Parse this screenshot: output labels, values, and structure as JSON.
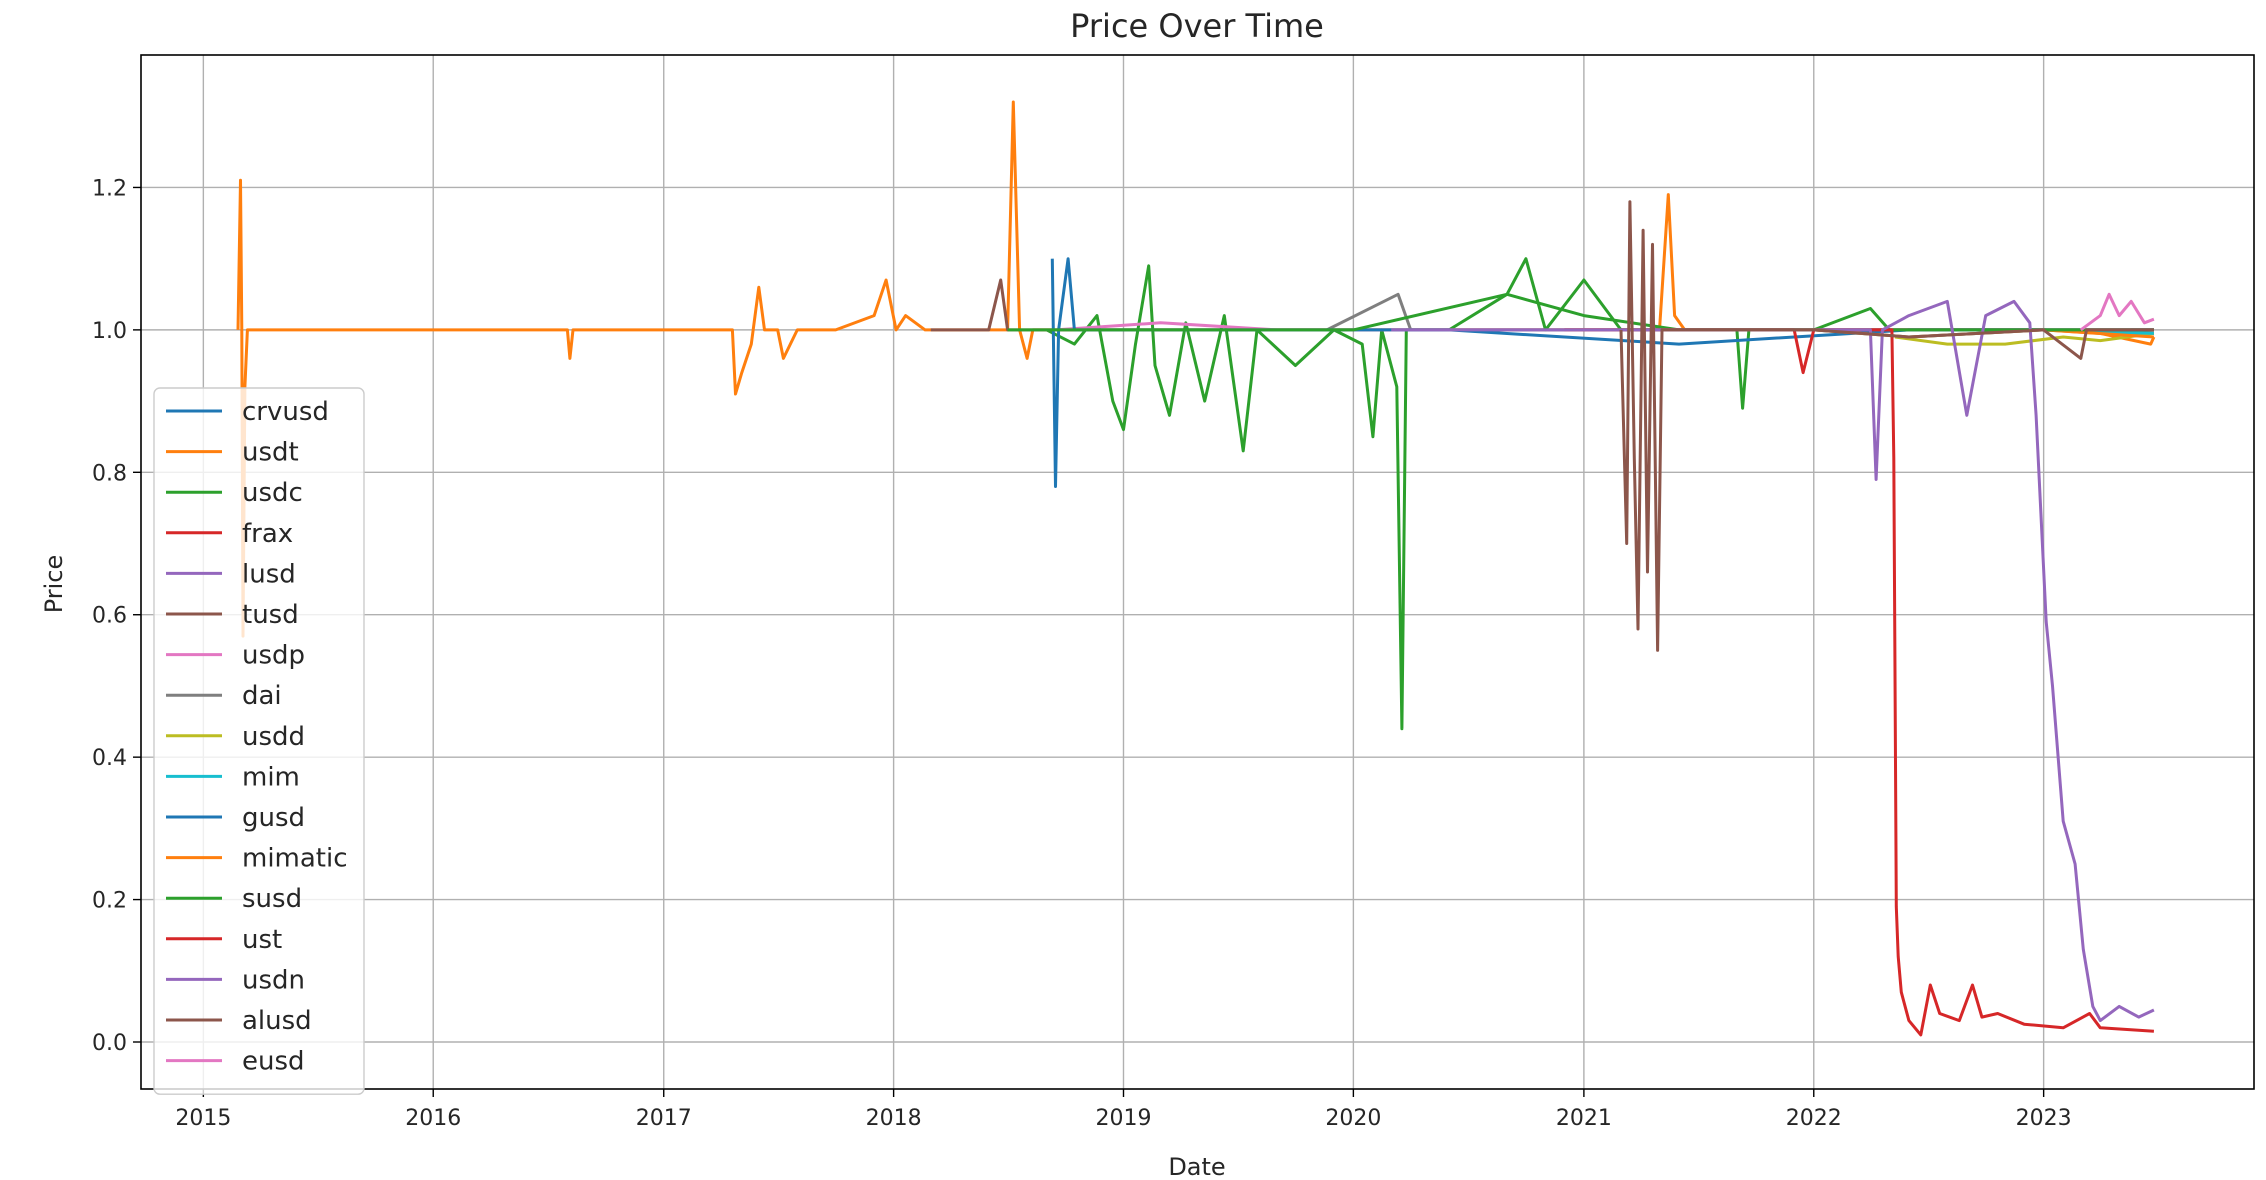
{
  "chart_data": {
    "type": "line",
    "title": "Price Over Time",
    "xlabel": "Date",
    "ylabel": "Price",
    "x_ticks": [
      "2015",
      "2016",
      "2017",
      "2018",
      "2019",
      "2020",
      "2021",
      "2022",
      "2023"
    ],
    "y_ticks": [
      "0.0",
      "0.2",
      "0.4",
      "0.6",
      "0.8",
      "1.0",
      "1.2"
    ],
    "xlim": [
      "2014-09-24",
      "2023-12-01"
    ],
    "ylim": [
      -0.066,
      1.386
    ],
    "grid": true,
    "legend_position": "lower-left",
    "series": [
      {
        "name": "crvusd",
        "color": "#1f77b4",
        "points": [
          [
            "2023-05-20",
            1.0
          ],
          [
            "2023-06-01",
            1.0
          ],
          [
            "2023-06-15",
            1.0
          ],
          [
            "2023-06-25",
            1.0
          ]
        ]
      },
      {
        "name": "usdt",
        "color": "#ff7f0e",
        "points": [
          [
            "2015-02-25",
            1.0
          ],
          [
            "2015-03-01",
            1.21
          ],
          [
            "2015-03-03",
            1.0
          ],
          [
            "2015-03-05",
            0.57
          ],
          [
            "2015-03-08",
            0.92
          ],
          [
            "2015-03-12",
            1.0
          ],
          [
            "2016-08-01",
            1.0
          ],
          [
            "2016-08-05",
            0.96
          ],
          [
            "2016-08-10",
            1.0
          ],
          [
            "2017-04-20",
            1.0
          ],
          [
            "2017-04-25",
            0.91
          ],
          [
            "2017-05-05",
            0.94
          ],
          [
            "2017-05-20",
            0.98
          ],
          [
            "2017-06-01",
            1.06
          ],
          [
            "2017-06-10",
            1.0
          ],
          [
            "2017-07-01",
            1.0
          ],
          [
            "2017-07-10",
            0.96
          ],
          [
            "2017-08-01",
            1.0
          ],
          [
            "2017-10-01",
            1.0
          ],
          [
            "2017-12-01",
            1.02
          ],
          [
            "2017-12-20",
            1.07
          ],
          [
            "2018-01-05",
            1.0
          ],
          [
            "2018-01-20",
            1.02
          ],
          [
            "2018-02-20",
            1.0
          ],
          [
            "2018-06-01",
            1.0
          ],
          [
            "2018-07-01",
            1.0
          ],
          [
            "2018-07-10",
            1.32
          ],
          [
            "2018-07-20",
            1.0
          ],
          [
            "2018-08-01",
            0.96
          ],
          [
            "2018-08-10",
            1.0
          ],
          [
            "2019-01-01",
            1.0
          ],
          [
            "2020-01-01",
            1.0
          ],
          [
            "2021-01-01",
            1.0
          ],
          [
            "2021-05-01",
            1.0
          ],
          [
            "2021-05-15",
            1.19
          ],
          [
            "2021-05-25",
            1.02
          ],
          [
            "2021-06-10",
            1.0
          ],
          [
            "2022-01-01",
            1.0
          ],
          [
            "2022-06-01",
            1.0
          ],
          [
            "2023-01-01",
            1.0
          ],
          [
            "2023-04-01",
            0.995
          ],
          [
            "2023-06-20",
            0.98
          ],
          [
            "2023-06-25",
            0.99
          ]
        ]
      },
      {
        "name": "usdc",
        "color": "#2ca02c",
        "points": [
          [
            "2018-09-01",
            1.0
          ],
          [
            "2018-10-15",
            0.98
          ],
          [
            "2018-11-20",
            1.02
          ],
          [
            "2018-12-15",
            0.9
          ],
          [
            "2019-01-01",
            0.86
          ],
          [
            "2019-01-20",
            0.98
          ],
          [
            "2019-02-10",
            1.09
          ],
          [
            "2019-02-20",
            0.95
          ],
          [
            "2019-03-15",
            0.88
          ],
          [
            "2019-04-10",
            1.01
          ],
          [
            "2019-05-10",
            0.9
          ],
          [
            "2019-06-10",
            1.02
          ],
          [
            "2019-07-10",
            0.83
          ],
          [
            "2019-08-01",
            1.0
          ],
          [
            "2019-10-01",
            0.95
          ],
          [
            "2019-12-01",
            1.0
          ],
          [
            "2020-01-15",
            0.98
          ],
          [
            "2020-02-01",
            0.85
          ],
          [
            "2020-02-15",
            1.0
          ],
          [
            "2020-03-10",
            0.92
          ],
          [
            "2020-03-18",
            0.44
          ],
          [
            "2020-03-25",
            1.0
          ],
          [
            "2020-06-01",
            1.0
          ],
          [
            "2020-09-01",
            1.05
          ],
          [
            "2021-01-01",
            1.02
          ],
          [
            "2021-06-01",
            1.0
          ],
          [
            "2021-09-01",
            1.0
          ],
          [
            "2021-09-10",
            0.89
          ],
          [
            "2021-09-20",
            1.0
          ],
          [
            "2022-01-01",
            1.0
          ],
          [
            "2023-06-25",
            1.0
          ]
        ]
      },
      {
        "name": "frax",
        "color": "#d62728",
        "points": [
          [
            "2020-12-01",
            1.0
          ],
          [
            "2021-06-01",
            1.0
          ],
          [
            "2022-01-01",
            1.0
          ],
          [
            "2022-06-01",
            1.0
          ],
          [
            "2023-01-01",
            1.0
          ],
          [
            "2023-06-25",
            1.0
          ]
        ]
      },
      {
        "name": "lusd",
        "color": "#9467bd",
        "points": [
          [
            "2021-04-10",
            1.0
          ],
          [
            "2021-10-01",
            1.0
          ],
          [
            "2022-04-01",
            1.0
          ],
          [
            "2022-10-01",
            1.0
          ],
          [
            "2023-01-01",
            1.0
          ],
          [
            "2023-06-25",
            0.995
          ]
        ]
      },
      {
        "name": "tusd",
        "color": "#8c564b",
        "points": [
          [
            "2018-03-01",
            1.0
          ],
          [
            "2018-06-01",
            1.0
          ],
          [
            "2018-06-20",
            1.07
          ],
          [
            "2018-07-01",
            1.0
          ],
          [
            "2019-01-01",
            1.0
          ],
          [
            "2020-01-01",
            1.0
          ],
          [
            "2021-01-01",
            1.0
          ],
          [
            "2022-01-01",
            1.0
          ],
          [
            "2023-01-01",
            1.0
          ],
          [
            "2023-06-25",
            0.995
          ]
        ]
      },
      {
        "name": "usdp",
        "color": "#e377c2",
        "points": [
          [
            "2018-09-15",
            1.0
          ],
          [
            "2019-03-01",
            1.01
          ],
          [
            "2019-09-01",
            1.0
          ],
          [
            "2020-06-01",
            1.0
          ],
          [
            "2021-06-01",
            1.0
          ],
          [
            "2022-06-01",
            1.0
          ],
          [
            "2023-06-25",
            1.0
          ]
        ]
      },
      {
        "name": "dai",
        "color": "#7f7f7f",
        "points": [
          [
            "2019-11-20",
            1.0
          ],
          [
            "2020-03-12",
            1.05
          ],
          [
            "2020-04-01",
            1.0
          ],
          [
            "2021-01-01",
            1.0
          ],
          [
            "2022-01-01",
            1.0
          ],
          [
            "2023-06-25",
            1.0
          ]
        ]
      },
      {
        "name": "usdd",
        "color": "#bcbd22",
        "points": [
          [
            "2022-05-10",
            0.99
          ],
          [
            "2022-08-01",
            0.98
          ],
          [
            "2022-11-01",
            0.98
          ],
          [
            "2023-02-01",
            0.99
          ],
          [
            "2023-04-01",
            0.985
          ],
          [
            "2023-06-25",
            0.995
          ]
        ]
      },
      {
        "name": "mim",
        "color": "#17becf",
        "points": [
          [
            "2021-06-01",
            1.0
          ],
          [
            "2022-01-01",
            1.0
          ],
          [
            "2022-06-01",
            0.99
          ],
          [
            "2023-01-01",
            1.0
          ],
          [
            "2023-06-25",
            0.995
          ]
        ]
      },
      {
        "name": "gusd",
        "color": "#1f77b4",
        "points": [
          [
            "2018-09-10",
            1.1
          ],
          [
            "2018-09-15",
            0.78
          ],
          [
            "2018-09-20",
            1.0
          ],
          [
            "2018-10-05",
            1.1
          ],
          [
            "2018-10-15",
            1.0
          ],
          [
            "2019-06-01",
            1.0
          ],
          [
            "2020-06-01",
            1.0
          ],
          [
            "2021-06-01",
            0.98
          ],
          [
            "2022-06-01",
            1.0
          ],
          [
            "2023-06-25",
            1.0
          ]
        ]
      },
      {
        "name": "mimatic",
        "color": "#ff7f0e",
        "points": [
          [
            "2021-06-01",
            1.0
          ],
          [
            "2022-01-01",
            1.0
          ],
          [
            "2022-06-01",
            0.99
          ],
          [
            "2023-01-01",
            1.0
          ],
          [
            "2023-06-25",
            0.99
          ]
        ]
      },
      {
        "name": "susd",
        "color": "#2ca02c",
        "points": [
          [
            "2018-07-01",
            1.0
          ],
          [
            "2019-01-01",
            1.0
          ],
          [
            "2020-01-01",
            1.0
          ],
          [
            "2020-09-01",
            1.05
          ],
          [
            "2020-10-01",
            1.1
          ],
          [
            "2020-11-01",
            1.0
          ],
          [
            "2021-01-01",
            1.07
          ],
          [
            "2021-03-01",
            1.0
          ],
          [
            "2022-01-01",
            1.0
          ],
          [
            "2022-04-01",
            1.03
          ],
          [
            "2022-05-01",
            1.0
          ],
          [
            "2023-06-25",
            1.0
          ]
        ]
      },
      {
        "name": "ust",
        "color": "#d62728",
        "points": [
          [
            "2020-12-01",
            1.0
          ],
          [
            "2021-06-01",
            1.0
          ],
          [
            "2021-12-01",
            1.0
          ],
          [
            "2021-12-15",
            0.94
          ],
          [
            "2022-01-01",
            1.0
          ],
          [
            "2022-05-05",
            1.0
          ],
          [
            "2022-05-08",
            0.82
          ],
          [
            "2022-05-12",
            0.19
          ],
          [
            "2022-05-15",
            0.12
          ],
          [
            "2022-05-20",
            0.07
          ],
          [
            "2022-06-01",
            0.03
          ],
          [
            "2022-06-20",
            0.01
          ],
          [
            "2022-07-05",
            0.08
          ],
          [
            "2022-07-20",
            0.04
          ],
          [
            "2022-08-20",
            0.03
          ],
          [
            "2022-09-10",
            0.08
          ],
          [
            "2022-09-25",
            0.035
          ],
          [
            "2022-10-20",
            0.04
          ],
          [
            "2022-12-01",
            0.025
          ],
          [
            "2023-02-01",
            0.02
          ],
          [
            "2023-03-15",
            0.04
          ],
          [
            "2023-04-01",
            0.02
          ],
          [
            "2023-06-25",
            0.015
          ]
        ]
      },
      {
        "name": "usdn",
        "color": "#9467bd",
        "points": [
          [
            "2020-03-01",
            1.0
          ],
          [
            "2020-06-01",
            1.0
          ],
          [
            "2021-06-01",
            1.0
          ],
          [
            "2021-12-01",
            1.0
          ],
          [
            "2022-04-01",
            1.0
          ],
          [
            "2022-04-10",
            0.79
          ],
          [
            "2022-04-20",
            1.0
          ],
          [
            "2022-06-01",
            1.02
          ],
          [
            "2022-08-01",
            1.04
          ],
          [
            "2022-09-01",
            0.88
          ],
          [
            "2022-10-01",
            1.02
          ],
          [
            "2022-11-15",
            1.04
          ],
          [
            "2022-12-10",
            1.01
          ],
          [
            "2022-12-20",
            0.88
          ],
          [
            "2023-01-05",
            0.59
          ],
          [
            "2023-01-15",
            0.5
          ],
          [
            "2023-02-01",
            0.31
          ],
          [
            "2023-02-20",
            0.25
          ],
          [
            "2023-03-05",
            0.13
          ],
          [
            "2023-03-20",
            0.05
          ],
          [
            "2023-04-01",
            0.03
          ],
          [
            "2023-05-01",
            0.05
          ],
          [
            "2023-06-01",
            0.035
          ],
          [
            "2023-06-25",
            0.045
          ]
        ]
      },
      {
        "name": "alusd",
        "color": "#8c564b",
        "points": [
          [
            "2021-03-01",
            1.0
          ],
          [
            "2021-03-10",
            0.7
          ],
          [
            "2021-03-15",
            1.18
          ],
          [
            "2021-03-22",
            0.82
          ],
          [
            "2021-03-28",
            0.58
          ],
          [
            "2021-04-05",
            1.14
          ],
          [
            "2021-04-12",
            0.66
          ],
          [
            "2021-04-20",
            1.12
          ],
          [
            "2021-04-28",
            0.55
          ],
          [
            "2021-05-05",
            1.0
          ],
          [
            "2021-06-01",
            1.0
          ],
          [
            "2022-01-01",
            1.0
          ],
          [
            "2022-06-01",
            0.99
          ],
          [
            "2023-01-01",
            1.0
          ],
          [
            "2023-03-01",
            0.96
          ],
          [
            "2023-03-10",
            1.0
          ],
          [
            "2023-06-25",
            1.0
          ]
        ]
      },
      {
        "name": "eusd",
        "color": "#e377c2",
        "points": [
          [
            "2023-03-01",
            1.0
          ],
          [
            "2023-04-01",
            1.02
          ],
          [
            "2023-04-15",
            1.05
          ],
          [
            "2023-05-01",
            1.02
          ],
          [
            "2023-05-20",
            1.04
          ],
          [
            "2023-06-10",
            1.01
          ],
          [
            "2023-06-25",
            1.015
          ]
        ]
      }
    ]
  }
}
